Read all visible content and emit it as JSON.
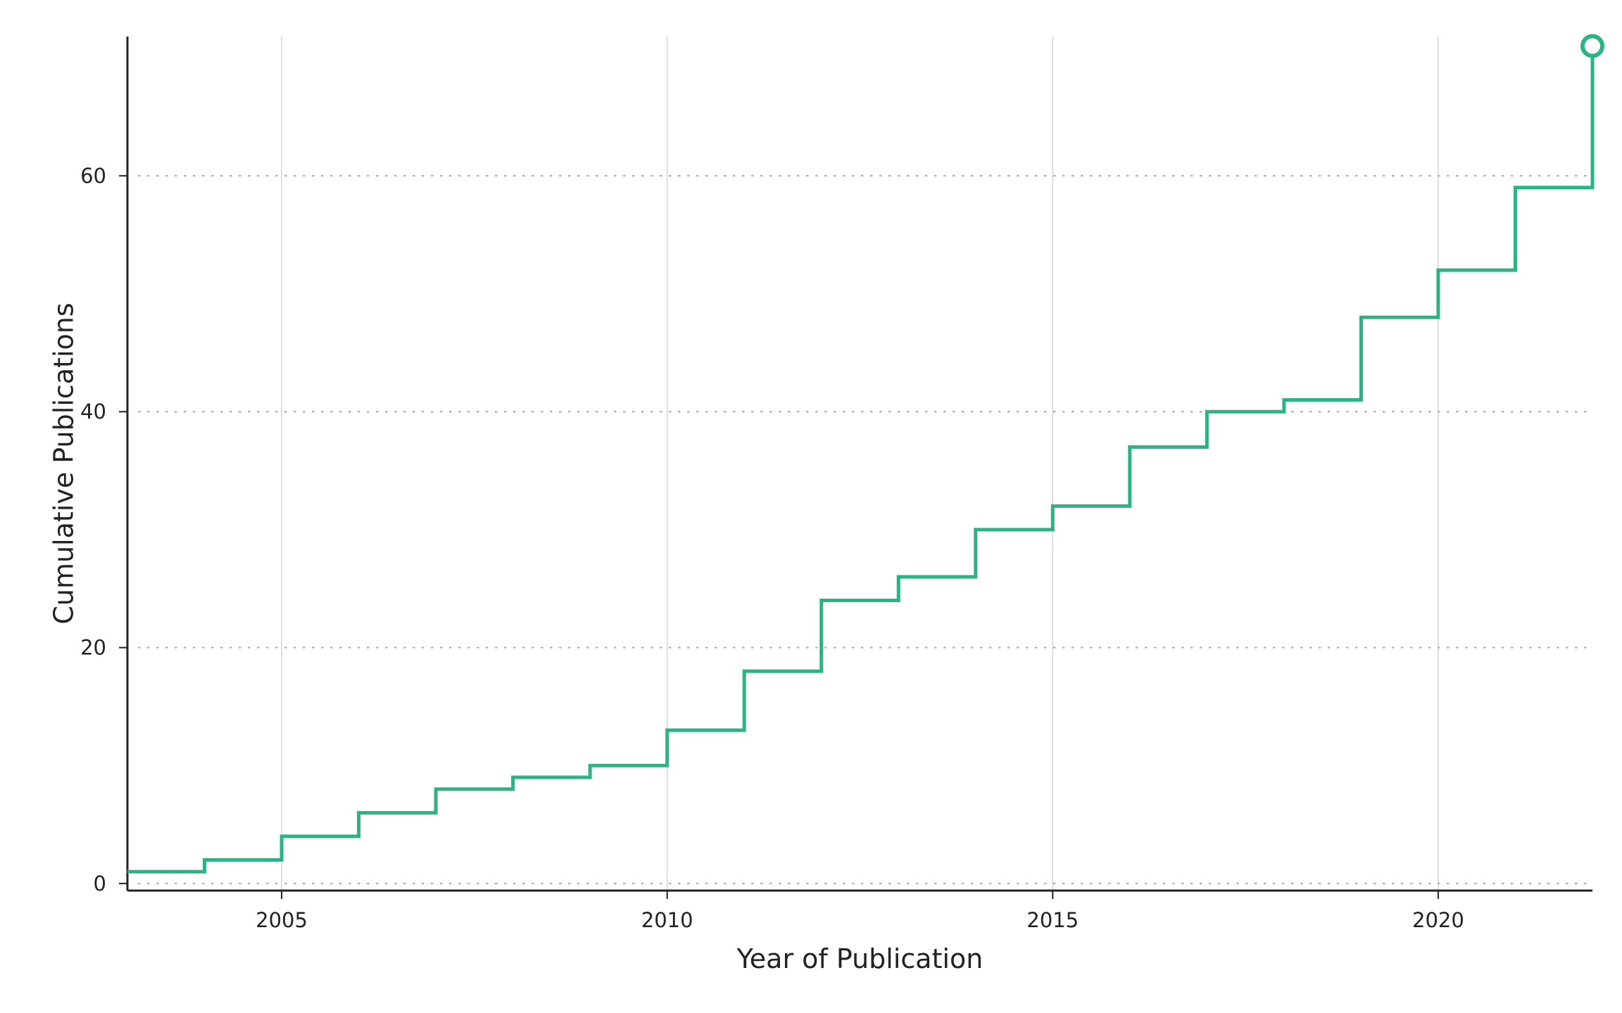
{
  "chart_data": {
    "type": "line",
    "step": "post",
    "title": "",
    "xlabel": "Year of Publication",
    "ylabel": "Cumulative Publications",
    "xlim": [
      2003,
      2022
    ],
    "ylim": [
      -0.6,
      71.8
    ],
    "xticks": [
      2005,
      2010,
      2015,
      2020
    ],
    "yticks": [
      0,
      20,
      40,
      60
    ],
    "x_grid": true,
    "y_grid": "dotted",
    "legend": "none",
    "line_color": "#2db383",
    "series": [
      {
        "x": [
          2003,
          2004,
          2005,
          2006,
          2007,
          2008,
          2009,
          2010,
          2011,
          2012,
          2013,
          2014,
          2015,
          2016,
          2017,
          2018,
          2019,
          2020,
          2021,
          2022
        ],
        "values": [
          1,
          2,
          4,
          6,
          8,
          9,
          10,
          13,
          18,
          24,
          26,
          30,
          32,
          37,
          40,
          41,
          48,
          52,
          59,
          71
        ]
      }
    ],
    "end_marker": {
      "x": 2022,
      "y": 71,
      "shape": "open-circle"
    }
  }
}
